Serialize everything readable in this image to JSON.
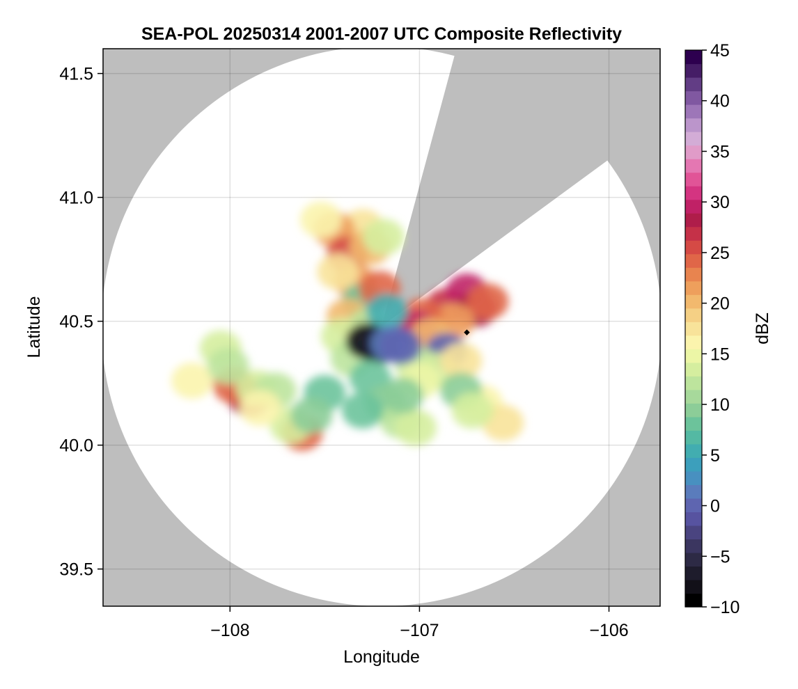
{
  "chart_data": {
    "type": "heatmap",
    "title": "SEA-POL 20250314 2001-2007 UTC Composite Reflectivity",
    "xlabel": "Longitude",
    "ylabel": "Latitude",
    "xlim": [
      -108.67,
      -105.73
    ],
    "ylim": [
      39.35,
      41.6
    ],
    "x_ticks": [
      -108,
      -107,
      -106
    ],
    "x_tick_labels": [
      "−108",
      "−107",
      "−106"
    ],
    "y_ticks": [
      39.5,
      40.0,
      40.5,
      41.0,
      41.5
    ],
    "y_tick_labels": [
      "39.5",
      "40.0",
      "40.5",
      "41.0",
      "41.5"
    ],
    "grid": true,
    "background_color": "#bebebe",
    "coverage_color": "#ffffff",
    "radar": {
      "center": [
        -107.2,
        40.48
      ],
      "range_lat_deg": 1.13,
      "blocked_sector": [
        {
          "lon": -106.83,
          "lat": 41.53
        },
        {
          "lon": -106.06,
          "lat": 41.12
        }
      ]
    },
    "site_marker": {
      "lon": -106.75,
      "lat": 40.455
    },
    "echo_cells": [
      {
        "lon": -106.86,
        "lat": 40.56,
        "dbz": 27
      },
      {
        "lon": -106.75,
        "lat": 40.62,
        "dbz": 30
      },
      {
        "lon": -106.7,
        "lat": 40.55,
        "dbz": 28
      },
      {
        "lon": -106.64,
        "lat": 40.58,
        "dbz": 24
      },
      {
        "lon": -106.82,
        "lat": 40.5,
        "dbz": 22
      },
      {
        "lon": -106.99,
        "lat": 40.52,
        "dbz": 24
      },
      {
        "lon": -107.02,
        "lat": 40.47,
        "dbz": 30
      },
      {
        "lon": -106.94,
        "lat": 40.44,
        "dbz": 20
      },
      {
        "lon": -106.86,
        "lat": 40.38,
        "dbz": 0
      },
      {
        "lon": -107.02,
        "lat": 40.33,
        "dbz": 12
      },
      {
        "lon": -106.9,
        "lat": 40.3,
        "dbz": 14
      },
      {
        "lon": -107.0,
        "lat": 40.26,
        "dbz": 15
      },
      {
        "lon": -106.78,
        "lat": 40.34,
        "dbz": 18
      },
      {
        "lon": -106.67,
        "lat": 40.17,
        "dbz": 16
      },
      {
        "lon": -106.56,
        "lat": 40.09,
        "dbz": 17
      },
      {
        "lon": -106.78,
        "lat": 40.22,
        "dbz": 10
      },
      {
        "lon": -106.72,
        "lat": 40.14,
        "dbz": 14
      },
      {
        "lon": -107.3,
        "lat": 40.88,
        "dbz": 18
      },
      {
        "lon": -107.45,
        "lat": 40.87,
        "dbz": 22
      },
      {
        "lon": -107.52,
        "lat": 40.91,
        "dbz": 16
      },
      {
        "lon": -107.38,
        "lat": 40.77,
        "dbz": 26
      },
      {
        "lon": -107.26,
        "lat": 40.8,
        "dbz": 20
      },
      {
        "lon": -107.19,
        "lat": 40.84,
        "dbz": 14
      },
      {
        "lon": -107.34,
        "lat": 40.66,
        "dbz": 22
      },
      {
        "lon": -107.43,
        "lat": 40.7,
        "dbz": 18
      },
      {
        "lon": -107.3,
        "lat": 40.58,
        "dbz": 8
      },
      {
        "lon": -107.21,
        "lat": 40.63,
        "dbz": 24
      },
      {
        "lon": -107.38,
        "lat": 40.52,
        "dbz": 20
      },
      {
        "lon": -107.27,
        "lat": 40.48,
        "dbz": 12
      },
      {
        "lon": -107.17,
        "lat": 40.54,
        "dbz": 6
      },
      {
        "lon": -107.41,
        "lat": 40.44,
        "dbz": 14
      },
      {
        "lon": -107.36,
        "lat": 40.35,
        "dbz": 12
      },
      {
        "lon": -107.28,
        "lat": 40.42,
        "dbz": -8
      },
      {
        "lon": -107.22,
        "lat": 40.4,
        "dbz": -6
      },
      {
        "lon": -107.15,
        "lat": 40.41,
        "dbz": 2
      },
      {
        "lon": -107.1,
        "lat": 40.4,
        "dbz": 0
      },
      {
        "lon": -107.26,
        "lat": 40.27,
        "dbz": 8
      },
      {
        "lon": -107.18,
        "lat": 40.17,
        "dbz": 10
      },
      {
        "lon": -107.1,
        "lat": 40.1,
        "dbz": 12
      },
      {
        "lon": -107.02,
        "lat": 40.07,
        "dbz": 14
      },
      {
        "lon": -107.3,
        "lat": 40.14,
        "dbz": 8
      },
      {
        "lon": -107.09,
        "lat": 40.2,
        "dbz": 10
      },
      {
        "lon": -107.5,
        "lat": 40.21,
        "dbz": 8
      },
      {
        "lon": -107.9,
        "lat": 40.19,
        "dbz": 28
      },
      {
        "lon": -107.98,
        "lat": 40.24,
        "dbz": 24
      },
      {
        "lon": -107.86,
        "lat": 40.23,
        "dbz": 14
      },
      {
        "lon": -108.2,
        "lat": 40.26,
        "dbz": 16
      },
      {
        "lon": -108.05,
        "lat": 40.39,
        "dbz": 14
      },
      {
        "lon": -108.01,
        "lat": 40.32,
        "dbz": 12
      },
      {
        "lon": -107.62,
        "lat": 40.05,
        "dbz": 24
      },
      {
        "lon": -107.68,
        "lat": 40.08,
        "dbz": 14
      },
      {
        "lon": -107.57,
        "lat": 40.12,
        "dbz": 10
      },
      {
        "lon": -107.76,
        "lat": 40.22,
        "dbz": 12
      },
      {
        "lon": -107.84,
        "lat": 40.15,
        "dbz": 16
      }
    ],
    "colorbar": {
      "label": "dBZ",
      "min": -10,
      "max": 45,
      "ticks": [
        -10,
        -5,
        0,
        5,
        10,
        15,
        20,
        25,
        30,
        35,
        40,
        45
      ],
      "tick_labels": [
        "−10",
        "−5",
        "0",
        "5",
        "10",
        "15",
        "20",
        "25",
        "30",
        "35",
        "40",
        "45"
      ],
      "colors": [
        "#000000",
        "#121018",
        "#1e1c2c",
        "#2d2a45",
        "#3b3660",
        "#4a4480",
        "#5753a0",
        "#5e65b0",
        "#5a7cbc",
        "#4890c0",
        "#3c9fbc",
        "#42adb0",
        "#54b9a3",
        "#6cc39b",
        "#8ccd98",
        "#a7d99b",
        "#bde49d",
        "#d5ee9f",
        "#ecf6a6",
        "#fbf4ad",
        "#f8e39a",
        "#f5d085",
        "#f2b96e",
        "#ee9f5c",
        "#e8844f",
        "#e06648",
        "#d54a45",
        "#c53148",
        "#af1d4a",
        "#c02166",
        "#d43481",
        "#e15497",
        "#e477b2",
        "#e09bc8",
        "#d3acd6",
        "#bb95cb",
        "#9d76b8",
        "#8058a1",
        "#623d85",
        "#451d66",
        "#2d004f"
      ]
    }
  }
}
